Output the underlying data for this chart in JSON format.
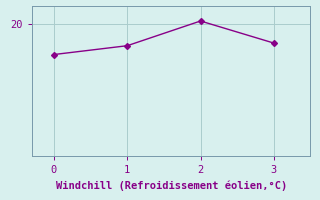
{
  "x": [
    0,
    1,
    2,
    3
  ],
  "y": [
    16.5,
    17.5,
    20.3,
    17.8
  ],
  "line_color": "#880088",
  "marker": "D",
  "marker_size": 3,
  "bg_color": "#d8f0ee",
  "grid_color": "#aacccc",
  "xlabel": "Windchill (Refroidissement éolien,°C)",
  "xlabel_color": "#880088",
  "tick_color": "#880088",
  "spine_color": "#7799aa",
  "xlim": [
    -0.3,
    3.5
  ],
  "ylim": [
    5,
    22
  ],
  "yticks": [
    20
  ],
  "xticks": [
    0,
    1,
    2,
    3
  ],
  "font_name": "monospace",
  "xlabel_fontsize": 7.5,
  "tick_fontsize": 7.5
}
